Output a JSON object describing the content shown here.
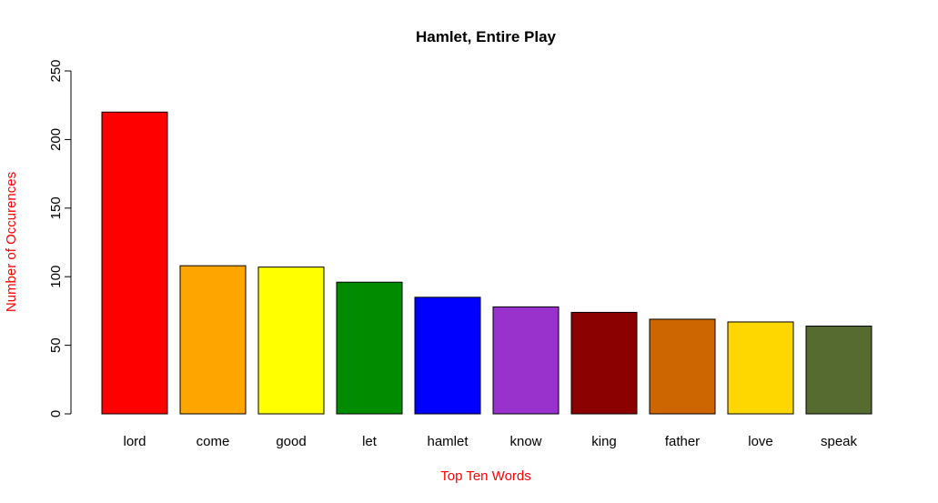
{
  "chart_data": {
    "type": "bar",
    "title": "Hamlet, Entire Play",
    "xlabel": "Top Ten Words",
    "ylabel": "Number of Occurences",
    "label_color": "#ff0000",
    "categories": [
      "lord",
      "come",
      "good",
      "let",
      "hamlet",
      "know",
      "king",
      "father",
      "love",
      "speak"
    ],
    "values": [
      220,
      108,
      107,
      96,
      85,
      78,
      74,
      69,
      67,
      64
    ],
    "colors": [
      "#ff0000",
      "#ffa500",
      "#ffff00",
      "#008b00",
      "#0000ff",
      "#9932cc",
      "#8b0000",
      "#cd6600",
      "#ffd700",
      "#556b2f"
    ],
    "ylim": [
      0,
      250
    ],
    "yticks": [
      0,
      50,
      100,
      150,
      200,
      250
    ],
    "grid": false,
    "legend": "none"
  }
}
